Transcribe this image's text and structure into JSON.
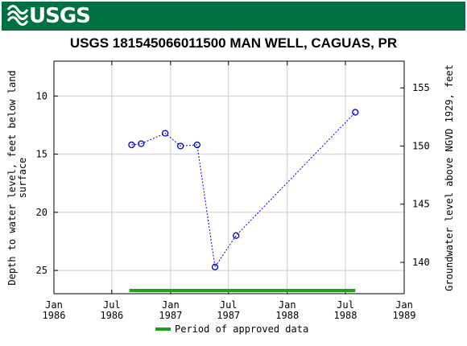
{
  "header": {
    "logo_text": "USGS",
    "bg_color": "#006f41"
  },
  "chart_data": {
    "type": "scatter",
    "title": "USGS 181545066011500 MAN WELL, CAGUAS, PR",
    "ylabel": "Depth to water level, feet below land surface",
    "ylabel_lines": [
      "Depth to water level, feet below land",
      "surface"
    ],
    "y2label": "Groundwater level above NGVD 1929, feet",
    "xlim": [
      "1986-01-01",
      "1989-01-01"
    ],
    "ylim": [
      27,
      7
    ],
    "y2lim": [
      137.3,
      157.3
    ],
    "x_ticks": [
      {
        "date": "1986-01-01",
        "line1": "Jan",
        "line2": "1986"
      },
      {
        "date": "1986-07-01",
        "line1": "Jul",
        "line2": "1986"
      },
      {
        "date": "1987-01-01",
        "line1": "Jan",
        "line2": "1987"
      },
      {
        "date": "1987-07-01",
        "line1": "Jul",
        "line2": "1987"
      },
      {
        "date": "1988-01-01",
        "line1": "Jan",
        "line2": "1988"
      },
      {
        "date": "1988-07-01",
        "line1": "Jul",
        "line2": "1988"
      },
      {
        "date": "1989-01-01",
        "line1": "Jan",
        "line2": "1989"
      }
    ],
    "y_ticks": [
      10,
      15,
      20,
      25
    ],
    "y2_ticks": [
      140,
      145,
      150,
      155
    ],
    "grid": true,
    "series": [
      {
        "color": "#0000cc",
        "marker": "open-circle",
        "line": "dotted",
        "x": [
          "1986-09-01",
          "1986-10-01",
          "1986-12-15",
          "1987-02-01",
          "1987-03-25",
          "1987-05-20",
          "1987-07-25",
          "1988-08-01"
        ],
        "y": [
          14.2,
          14.1,
          13.2,
          14.3,
          14.2,
          24.7,
          22.0,
          11.4
        ]
      }
    ],
    "approved_period": {
      "start": "1986-08-25",
      "end": "1988-08-01",
      "color": "#1ea01e"
    },
    "legend": {
      "placement": "bottom",
      "label": "Period of approved data",
      "color": "#1ea01e"
    }
  }
}
